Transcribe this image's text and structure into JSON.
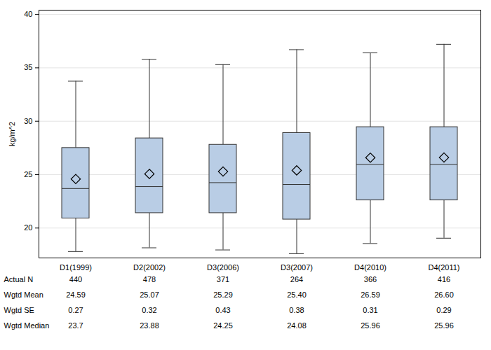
{
  "chart_data": {
    "type": "box",
    "y_label": "kg/m^2",
    "categories": [
      "D1(1999)",
      "D2(2002)",
      "D3(2006)",
      "D3(2007)",
      "D4(2010)",
      "D4(2011)"
    ],
    "boxes": [
      {
        "low": 17.8,
        "q1": 20.9,
        "median": 23.7,
        "q3": 27.5,
        "high": 33.75,
        "mean": 24.59
      },
      {
        "low": 18.15,
        "q1": 21.4,
        "median": 23.88,
        "q3": 28.4,
        "high": 35.8,
        "mean": 25.07
      },
      {
        "low": 17.95,
        "q1": 21.4,
        "median": 24.25,
        "q3": 27.8,
        "high": 35.3,
        "mean": 25.29
      },
      {
        "low": 17.6,
        "q1": 20.8,
        "median": 24.08,
        "q3": 28.9,
        "high": 36.7,
        "mean": 25.4
      },
      {
        "low": 18.55,
        "q1": 22.6,
        "median": 25.96,
        "q3": 29.45,
        "high": 36.4,
        "mean": 26.59
      },
      {
        "low": 19.05,
        "q1": 22.6,
        "median": 25.96,
        "q3": 29.45,
        "high": 37.2,
        "mean": 26.6
      }
    ],
    "color": "#b9cde5",
    "marker": "diamond",
    "ylim": [
      17.2,
      40.4
    ],
    "yticks": [
      20,
      25,
      30,
      35,
      40
    ],
    "grid": true,
    "table": {
      "rows": [
        {
          "label": "Actual N",
          "values": [
            "440",
            "478",
            "371",
            "264",
            "366",
            "416"
          ]
        },
        {
          "label": "Wgtd Mean",
          "values": [
            "24.59",
            "25.07",
            "25.29",
            "25.40",
            "26.59",
            "26.60"
          ]
        },
        {
          "label": "Wgtd SE",
          "values": [
            "0.27",
            "0.32",
            "0.43",
            "0.38",
            "0.31",
            "0.29"
          ]
        },
        {
          "label": "Wgtd Median",
          "values": [
            "23.7",
            "23.88",
            "24.25",
            "24.08",
            "25.96",
            "25.96"
          ]
        }
      ]
    }
  }
}
